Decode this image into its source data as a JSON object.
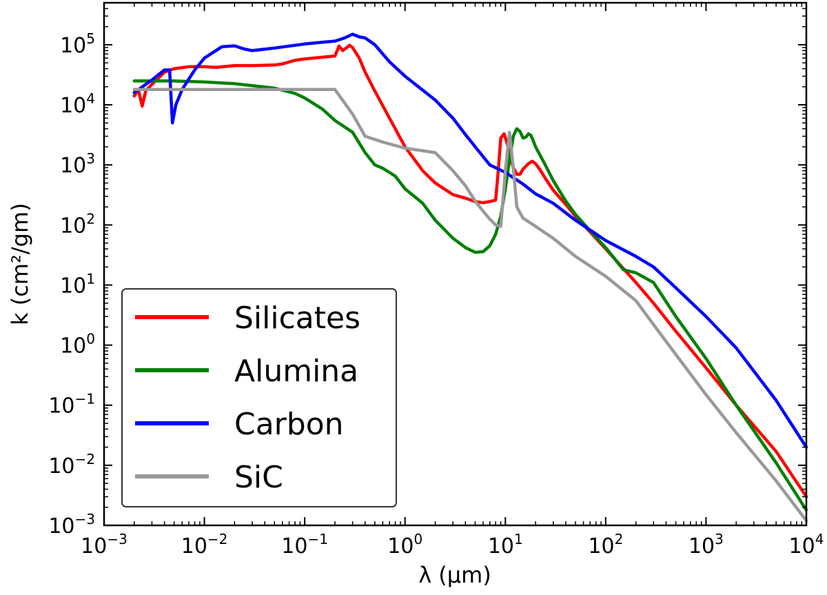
{
  "chart_data": {
    "type": "line",
    "title": "",
    "xlabel": "λ (μm)",
    "ylabel": "k (cm²/gm)",
    "xscale": "log",
    "yscale": "log",
    "xlim": [
      0.001,
      10000
    ],
    "ylim": [
      0.001,
      500000
    ],
    "x_ticks": [
      {
        "base": "10",
        "exp": "−3"
      },
      {
        "base": "10",
        "exp": "−2"
      },
      {
        "base": "10",
        "exp": "−1"
      },
      {
        "base": "10",
        "exp": "0"
      },
      {
        "base": "10",
        "exp": "1"
      },
      {
        "base": "10",
        "exp": "2"
      },
      {
        "base": "10",
        "exp": "3"
      },
      {
        "base": "10",
        "exp": "4"
      }
    ],
    "y_ticks": [
      {
        "base": "10",
        "exp": "−3"
      },
      {
        "base": "10",
        "exp": "−2"
      },
      {
        "base": "10",
        "exp": "−1"
      },
      {
        "base": "10",
        "exp": "0"
      },
      {
        "base": "10",
        "exp": "1"
      },
      {
        "base": "10",
        "exp": "2"
      },
      {
        "base": "10",
        "exp": "3"
      },
      {
        "base": "10",
        "exp": "4"
      },
      {
        "base": "10",
        "exp": "5"
      }
    ],
    "grid": false,
    "legend_position": "lower-left",
    "series": [
      {
        "name": "Silicates",
        "color": "#ff0000",
        "points": [
          [
            0.002,
            14000
          ],
          [
            0.0022,
            18000
          ],
          [
            0.0024,
            9500
          ],
          [
            0.0026,
            17000
          ],
          [
            0.003,
            22000
          ],
          [
            0.004,
            35000
          ],
          [
            0.005,
            40000
          ],
          [
            0.007,
            43000
          ],
          [
            0.01,
            43000
          ],
          [
            0.013,
            42000
          ],
          [
            0.02,
            45000
          ],
          [
            0.03,
            45000
          ],
          [
            0.05,
            46000
          ],
          [
            0.06,
            48000
          ],
          [
            0.08,
            55000
          ],
          [
            0.1,
            58000
          ],
          [
            0.15,
            62000
          ],
          [
            0.2,
            65000
          ],
          [
            0.22,
            95000
          ],
          [
            0.24,
            80000
          ],
          [
            0.28,
            98000
          ],
          [
            0.3,
            90000
          ],
          [
            0.35,
            60000
          ],
          [
            0.4,
            35000
          ],
          [
            0.5,
            17000
          ],
          [
            0.7,
            6000
          ],
          [
            1,
            2000
          ],
          [
            1.5,
            800
          ],
          [
            2,
            500
          ],
          [
            3,
            320
          ],
          [
            4,
            280
          ],
          [
            5,
            245
          ],
          [
            6,
            235
          ],
          [
            7,
            245
          ],
          [
            8,
            260
          ],
          [
            8.5,
            800
          ],
          [
            9,
            2800
          ],
          [
            9.7,
            3300
          ],
          [
            10.5,
            2200
          ],
          [
            11,
            1500
          ],
          [
            12,
            900
          ],
          [
            13,
            700
          ],
          [
            14,
            700
          ],
          [
            15,
            850
          ],
          [
            17,
            1050
          ],
          [
            18.5,
            1150
          ],
          [
            20,
            1050
          ],
          [
            22,
            850
          ],
          [
            25,
            600
          ],
          [
            30,
            380
          ],
          [
            40,
            220
          ],
          [
            50,
            140
          ],
          [
            100,
            40
          ],
          [
            200,
            11
          ],
          [
            300,
            5
          ],
          [
            500,
            1.7
          ],
          [
            1000,
            0.42
          ],
          [
            2000,
            0.1
          ],
          [
            5000,
            0.017
          ],
          [
            10000,
            0.003
          ]
        ]
      },
      {
        "name": "Alumina",
        "color": "#008000",
        "points": [
          [
            0.002,
            25000
          ],
          [
            0.005,
            25000
          ],
          [
            0.01,
            24000
          ],
          [
            0.02,
            22500
          ],
          [
            0.05,
            19000
          ],
          [
            0.08,
            15500
          ],
          [
            0.1,
            13000
          ],
          [
            0.15,
            8500
          ],
          [
            0.2,
            5500
          ],
          [
            0.3,
            3500
          ],
          [
            0.4,
            1600
          ],
          [
            0.5,
            1000
          ],
          [
            0.6,
            880
          ],
          [
            0.8,
            650
          ],
          [
            1,
            400
          ],
          [
            1.5,
            230
          ],
          [
            2,
            120
          ],
          [
            3,
            60
          ],
          [
            4,
            42
          ],
          [
            5,
            35
          ],
          [
            6,
            36
          ],
          [
            7,
            45
          ],
          [
            8,
            70
          ],
          [
            9,
            140
          ],
          [
            10,
            400
          ],
          [
            11,
            1200
          ],
          [
            12,
            3000
          ],
          [
            13,
            4000
          ],
          [
            14,
            3600
          ],
          [
            15,
            2800
          ],
          [
            16,
            2900
          ],
          [
            17,
            3300
          ],
          [
            18,
            3100
          ],
          [
            19,
            2500
          ],
          [
            20,
            2000
          ],
          [
            25,
            1000
          ],
          [
            30,
            550
          ],
          [
            40,
            250
          ],
          [
            50,
            150
          ],
          [
            70,
            80
          ],
          [
            100,
            42
          ],
          [
            150,
            18
          ],
          [
            200,
            16
          ],
          [
            300,
            11
          ],
          [
            500,
            3
          ],
          [
            1000,
            0.6
          ],
          [
            2000,
            0.1
          ],
          [
            5000,
            0.011
          ],
          [
            10000,
            0.0018
          ]
        ]
      },
      {
        "name": "Carbon",
        "color": "#0000ff",
        "points": [
          [
            0.002,
            16000
          ],
          [
            0.003,
            26000
          ],
          [
            0.004,
            38000
          ],
          [
            0.0045,
            38000
          ],
          [
            0.0048,
            5000
          ],
          [
            0.0052,
            10000
          ],
          [
            0.006,
            18000
          ],
          [
            0.008,
            38000
          ],
          [
            0.01,
            60000
          ],
          [
            0.015,
            93000
          ],
          [
            0.02,
            96000
          ],
          [
            0.025,
            85000
          ],
          [
            0.03,
            80000
          ],
          [
            0.05,
            88000
          ],
          [
            0.08,
            98000
          ],
          [
            0.1,
            103000
          ],
          [
            0.15,
            110000
          ],
          [
            0.2,
            115000
          ],
          [
            0.25,
            130000
          ],
          [
            0.3,
            150000
          ],
          [
            0.35,
            135000
          ],
          [
            0.4,
            130000
          ],
          [
            0.5,
            100000
          ],
          [
            0.7,
            52000
          ],
          [
            1,
            30000
          ],
          [
            2,
            12000
          ],
          [
            3,
            6000
          ],
          [
            4,
            3200
          ],
          [
            5,
            2000
          ],
          [
            7,
            1000
          ],
          [
            10,
            750
          ],
          [
            15,
            480
          ],
          [
            20,
            330
          ],
          [
            30,
            230
          ],
          [
            50,
            120
          ],
          [
            100,
            55
          ],
          [
            200,
            30
          ],
          [
            300,
            20
          ],
          [
            500,
            9
          ],
          [
            1000,
            3
          ],
          [
            2000,
            0.9
          ],
          [
            5000,
            0.12
          ],
          [
            10000,
            0.02
          ]
        ]
      },
      {
        "name": "SiC",
        "color": "#999999",
        "points": [
          [
            0.002,
            18000
          ],
          [
            0.01,
            18000
          ],
          [
            0.05,
            18000
          ],
          [
            0.1,
            18000
          ],
          [
            0.2,
            18000
          ],
          [
            0.3,
            7000
          ],
          [
            0.4,
            3000
          ],
          [
            0.6,
            2400
          ],
          [
            1,
            1900
          ],
          [
            2,
            1600
          ],
          [
            3,
            800
          ],
          [
            4,
            450
          ],
          [
            5,
            250
          ],
          [
            6,
            170
          ],
          [
            7,
            125
          ],
          [
            8,
            100
          ],
          [
            9,
            95
          ],
          [
            10,
            800
          ],
          [
            11,
            3500
          ],
          [
            12,
            900
          ],
          [
            13,
            200
          ],
          [
            15,
            130
          ],
          [
            20,
            95
          ],
          [
            30,
            60
          ],
          [
            50,
            30
          ],
          [
            100,
            14
          ],
          [
            200,
            5.5
          ],
          [
            300,
            2.2
          ],
          [
            500,
            0.7
          ],
          [
            1000,
            0.15
          ],
          [
            2000,
            0.035
          ],
          [
            5000,
            0.0055
          ],
          [
            10000,
            0.0012
          ]
        ]
      }
    ]
  }
}
